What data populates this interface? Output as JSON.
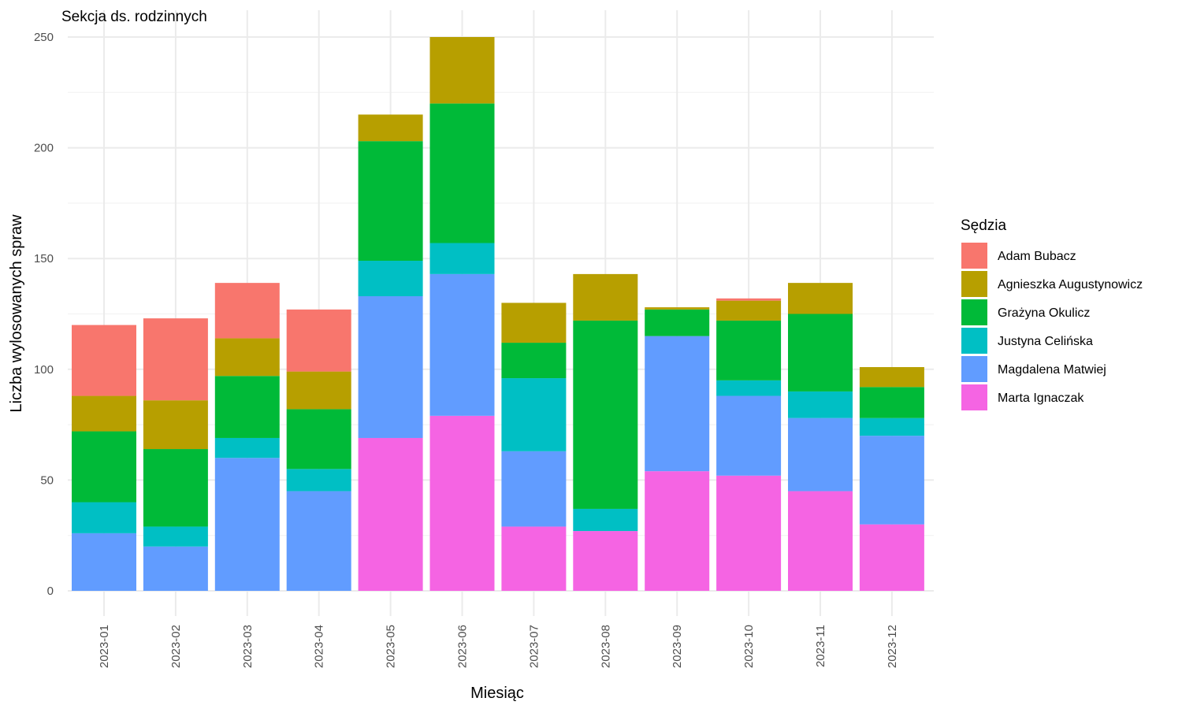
{
  "chart_data": {
    "type": "bar",
    "stacked": true,
    "title": "Sekcja ds. rodzinnych",
    "xlabel": "Miesiąc",
    "ylabel": "Liczba wylosowanych spraw",
    "ylim": [
      0,
      250
    ],
    "yticks": [
      0,
      50,
      100,
      150,
      200,
      250
    ],
    "grid": true,
    "legend_title": "Sędzia",
    "legend_position": "right",
    "categories": [
      "2023-01",
      "2023-02",
      "2023-03",
      "2023-04",
      "2023-05",
      "2023-06",
      "2023-07",
      "2023-08",
      "2023-09",
      "2023-10",
      "2023-11",
      "2023-12"
    ],
    "series": [
      {
        "name": "Adam Bubacz",
        "color": "#F8766D",
        "values": [
          32,
          37,
          25,
          28,
          0,
          0,
          0,
          0,
          0,
          1,
          0,
          0
        ]
      },
      {
        "name": "Agnieszka Augustynowicz",
        "color": "#B79F00",
        "values": [
          16,
          22,
          17,
          17,
          12,
          30,
          18,
          21,
          1,
          9,
          14,
          9
        ]
      },
      {
        "name": "Grażyna Okulicz",
        "color": "#00BA38",
        "values": [
          32,
          35,
          28,
          27,
          54,
          63,
          16,
          85,
          12,
          27,
          35,
          14
        ]
      },
      {
        "name": "Justyna Celińska",
        "color": "#00BFC4",
        "values": [
          14,
          9,
          9,
          10,
          16,
          14,
          33,
          10,
          0,
          7,
          12,
          8
        ]
      },
      {
        "name": "Magdalena Matwiej",
        "color": "#619CFF",
        "values": [
          26,
          20,
          60,
          45,
          64,
          64,
          34,
          0,
          61,
          36,
          33,
          40
        ]
      },
      {
        "name": "Marta Ignaczak",
        "color": "#F564E3",
        "values": [
          0,
          0,
          0,
          0,
          69,
          79,
          29,
          27,
          54,
          52,
          45,
          30
        ]
      }
    ]
  }
}
